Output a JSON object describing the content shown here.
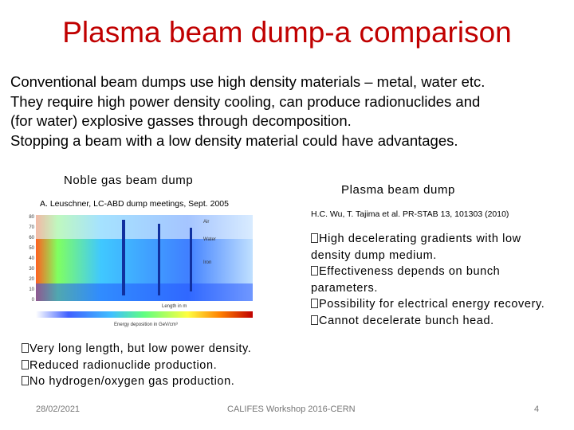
{
  "title": "Plasma beam dump-a comparison",
  "intro": [
    "Conventional beam dumps use high density materials – metal, water etc.",
    "They require high power density cooling, can produce radionuclides and",
    "(for water) explosive gasses through decomposition.",
    "Stopping a beam with a low density material could have advantages."
  ],
  "left": {
    "heading": "Noble gas beam dump",
    "citation": "A. Leuschner, LC-ABD dump meetings, Sept. 2005",
    "figure": {
      "labels": [
        "Air",
        "Water",
        "Iron",
        "Length in m",
        "Energy deposition in GeV/cm³"
      ],
      "yticks": [
        "80",
        "70",
        "60",
        "50",
        "40",
        "30",
        "20",
        "10",
        "0"
      ]
    },
    "bullets": [
      "Very long length, but low power density.",
      "Reduced radionuclide production.",
      "No hydrogen/oxygen gas production."
    ]
  },
  "right": {
    "heading": "Plasma beam dump",
    "citation": "H.C. Wu, T. Tajima et al. PR-STAB 13, 101303 (2010)",
    "bullets": [
      "High decelerating gradients with low density dump medium.",
      "Effectiveness depends on bunch parameters.",
      "Possibility for electrical energy recovery.",
      "Cannot decelerate bunch head."
    ]
  },
  "footer": {
    "date": "28/02/2021",
    "center": "CALIFES Workshop 2016-CERN",
    "page": "4"
  }
}
